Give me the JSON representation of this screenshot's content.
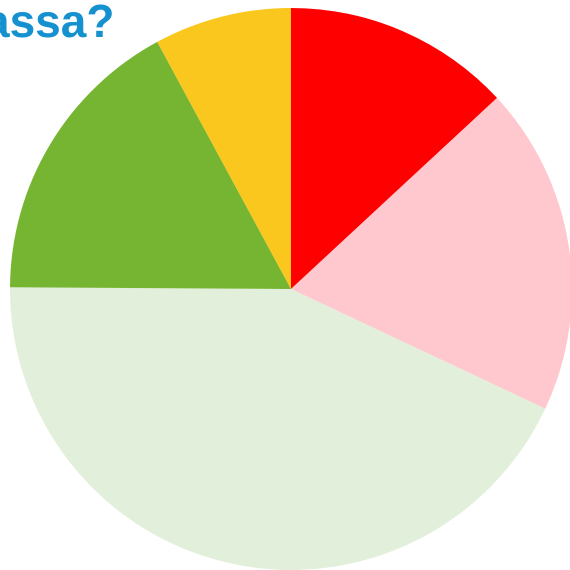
{
  "chart_data": {
    "type": "pie",
    "title": "assa?",
    "title_color": "#1591D0",
    "start_angle_deg": 0,
    "direction": "clockwise",
    "slices": [
      {
        "value": 13.1,
        "color": "#FF0000"
      },
      {
        "value": 18.9,
        "color": "#FFC7CE"
      },
      {
        "value": 43.1,
        "color": "#E2EFDA"
      },
      {
        "value": 17.0,
        "color": "#76B531"
      },
      {
        "value": 7.9,
        "color": "#FAC71E"
      }
    ]
  }
}
